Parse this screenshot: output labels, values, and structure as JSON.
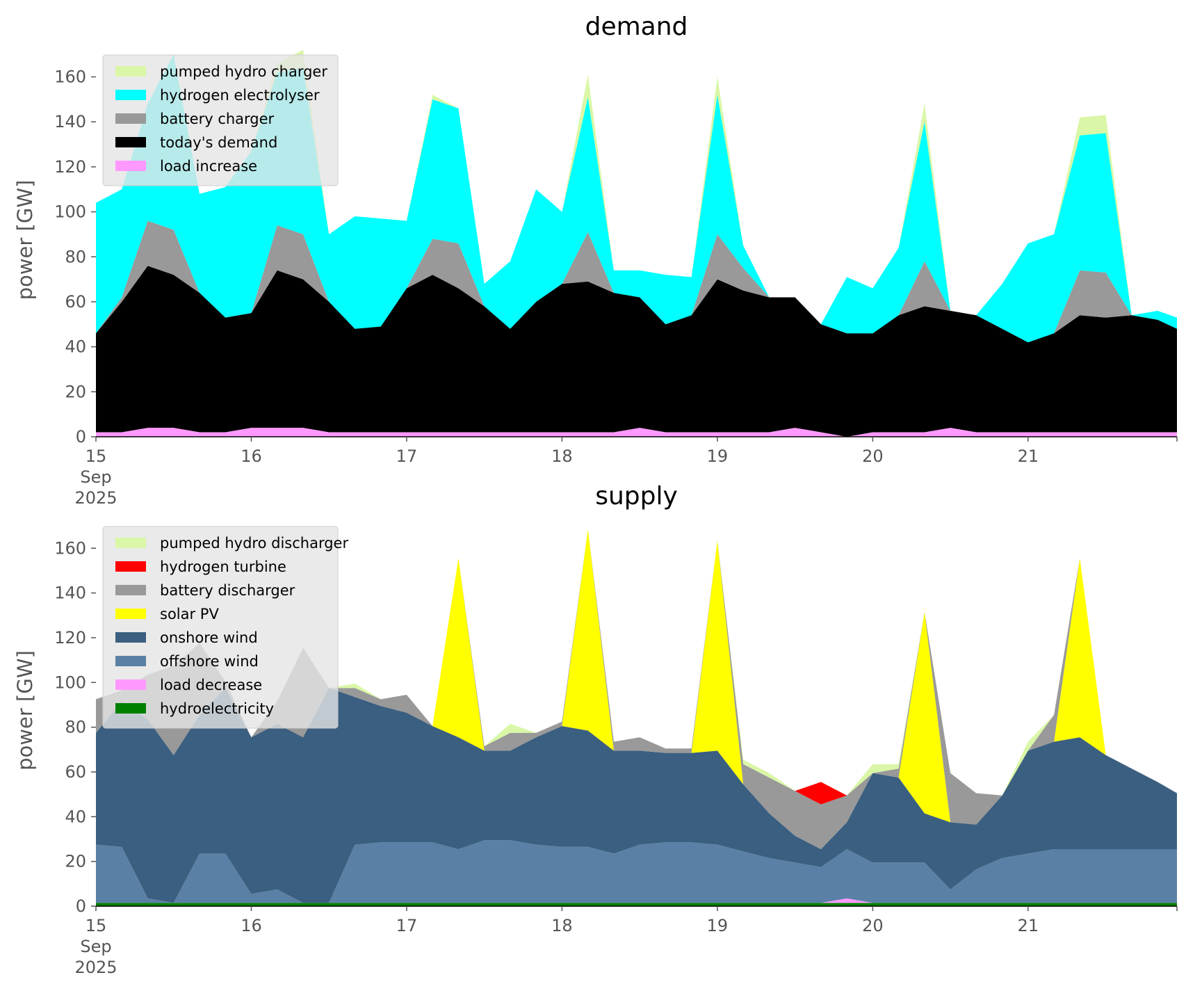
{
  "chart_data": [
    {
      "type": "area",
      "title": "demand",
      "ylabel": "power [GW]",
      "xlabel": "",
      "ylim": [
        0,
        175
      ],
      "yticks": [
        0,
        20,
        40,
        60,
        80,
        100,
        120,
        140,
        160
      ],
      "xlim": [
        0,
        167
      ],
      "xtick_labels": [
        {
          "x": 0,
          "lines": [
            "15",
            "Sep",
            "2025"
          ]
        },
        {
          "x": 24,
          "lines": [
            "16"
          ]
        },
        {
          "x": 48,
          "lines": [
            "17"
          ]
        },
        {
          "x": 72,
          "lines": [
            "18"
          ]
        },
        {
          "x": 96,
          "lines": [
            "19"
          ]
        },
        {
          "x": 120,
          "lines": [
            "20"
          ]
        },
        {
          "x": 144,
          "lines": [
            "21"
          ]
        }
      ],
      "x_unit": "hours from 2025-09-15 00:00",
      "stacked": true,
      "grid": false,
      "legend_position": "top-left",
      "x": [
        0,
        4,
        8,
        12,
        16,
        20,
        24,
        28,
        32,
        36,
        40,
        44,
        48,
        52,
        56,
        60,
        64,
        68,
        72,
        76,
        80,
        84,
        88,
        92,
        96,
        100,
        104,
        108,
        112,
        116,
        120,
        124,
        128,
        132,
        136,
        140,
        144,
        148,
        152,
        156,
        160,
        164,
        167
      ],
      "series": [
        {
          "name": "load increase",
          "color": "#ff99ff",
          "values": [
            2,
            2,
            4,
            4,
            2,
            2,
            4,
            4,
            4,
            2,
            2,
            2,
            2,
            2,
            2,
            2,
            2,
            2,
            2,
            2,
            2,
            4,
            2,
            2,
            2,
            2,
            2,
            4,
            2,
            0,
            2,
            2,
            2,
            4,
            2,
            2,
            2,
            2,
            2,
            2,
            2,
            2,
            2
          ]
        },
        {
          "name": "today's demand",
          "color": "#000000",
          "values": [
            44,
            58,
            72,
            68,
            62,
            51,
            51,
            70,
            66,
            58,
            46,
            47,
            64,
            70,
            64,
            56,
            46,
            58,
            66,
            67,
            62,
            58,
            48,
            52,
            68,
            63,
            60,
            58,
            48,
            46,
            44,
            52,
            56,
            52,
            52,
            46,
            40,
            44,
            52,
            51,
            52,
            50,
            46
          ]
        },
        {
          "name": "battery charger",
          "color": "#999999",
          "values": [
            0,
            2,
            20,
            20,
            0,
            0,
            0,
            20,
            20,
            0,
            0,
            0,
            0,
            16,
            20,
            0,
            0,
            0,
            0,
            22,
            0,
            0,
            0,
            0,
            20,
            10,
            0,
            0,
            0,
            0,
            0,
            0,
            20,
            0,
            0,
            0,
            0,
            0,
            20,
            20,
            0,
            0,
            0
          ]
        },
        {
          "name": "hydrogen electrolyser",
          "color": "#00ffff",
          "values": [
            58,
            48,
            52,
            78,
            44,
            58,
            72,
            68,
            74,
            30,
            50,
            48,
            30,
            62,
            60,
            10,
            30,
            50,
            32,
            60,
            10,
            12,
            22,
            17,
            62,
            10,
            0,
            0,
            0,
            25,
            20,
            30,
            62,
            0,
            0,
            20,
            44,
            44,
            60,
            62,
            0,
            4,
            5
          ]
        },
        {
          "name": "pumped hydro charger",
          "color": "#d9f7a6",
          "values": [
            0,
            0,
            0,
            0,
            0,
            0,
            0,
            4,
            8,
            0,
            0,
            0,
            0,
            2,
            0,
            0,
            0,
            0,
            0,
            10,
            0,
            0,
            0,
            0,
            8,
            0,
            0,
            0,
            0,
            0,
            0,
            0,
            8,
            0,
            0,
            0,
            0,
            0,
            8,
            8,
            0,
            0,
            0
          ]
        }
      ]
    },
    {
      "type": "area",
      "title": "supply",
      "ylabel": "power [GW]",
      "xlabel": "",
      "ylim": [
        0,
        175
      ],
      "yticks": [
        0,
        20,
        40,
        60,
        80,
        100,
        120,
        140,
        160
      ],
      "xlim": [
        0,
        167
      ],
      "xtick_labels": [
        {
          "x": 0,
          "lines": [
            "15",
            "Sep",
            "2025"
          ]
        },
        {
          "x": 24,
          "lines": [
            "16"
          ]
        },
        {
          "x": 48,
          "lines": [
            "17"
          ]
        },
        {
          "x": 72,
          "lines": [
            "18"
          ]
        },
        {
          "x": 96,
          "lines": [
            "19"
          ]
        },
        {
          "x": 120,
          "lines": [
            "20"
          ]
        },
        {
          "x": 144,
          "lines": [
            "21"
          ]
        }
      ],
      "x_unit": "hours from 2025-09-15 00:00",
      "stacked": true,
      "grid": false,
      "legend_position": "top-left",
      "x": [
        0,
        4,
        8,
        12,
        16,
        20,
        24,
        28,
        32,
        36,
        40,
        44,
        48,
        52,
        56,
        60,
        64,
        68,
        72,
        76,
        80,
        84,
        88,
        92,
        96,
        100,
        104,
        108,
        112,
        116,
        120,
        124,
        128,
        132,
        136,
        140,
        144,
        148,
        152,
        156,
        160,
        164,
        167
      ],
      "series": [
        {
          "name": "hydroelectricity",
          "color": "#008000",
          "values": [
            1.5,
            1.5,
            1.5,
            1.5,
            1.5,
            1.5,
            1.5,
            1.5,
            1.5,
            1.5,
            1.5,
            1.5,
            1.5,
            1.5,
            1.5,
            1.5,
            1.5,
            1.5,
            1.5,
            1.5,
            1.5,
            1.5,
            1.5,
            1.5,
            1.5,
            1.5,
            1.5,
            1.5,
            1.5,
            1.5,
            1.5,
            1.5,
            1.5,
            1.5,
            1.5,
            1.5,
            1.5,
            1.5,
            1.5,
            1.5,
            1.5,
            1.5,
            1.5
          ]
        },
        {
          "name": "load decrease",
          "color": "#ff99ff",
          "values": [
            0,
            0,
            0,
            0,
            0,
            0,
            0,
            0,
            0,
            0,
            0,
            0,
            0,
            0,
            0,
            0,
            0,
            0,
            0,
            0,
            0,
            0,
            0,
            0,
            0,
            0,
            0,
            0,
            0,
            2,
            0,
            0,
            0,
            0,
            0,
            0,
            0,
            0,
            0,
            0,
            0,
            0,
            0
          ]
        },
        {
          "name": "offshore wind",
          "color": "#5b80a5",
          "values": [
            26,
            25,
            2,
            0,
            22,
            22,
            4,
            6,
            0,
            0,
            26,
            27,
            27,
            27,
            24,
            28,
            28,
            26,
            25,
            25,
            22,
            26,
            27,
            27,
            26,
            23,
            20,
            18,
            16,
            22,
            18,
            18,
            18,
            6,
            15,
            20,
            22,
            24,
            24,
            24,
            24,
            24,
            24
          ]
        },
        {
          "name": "onshore wind",
          "color": "#3b5f80",
          "values": [
            50,
            65,
            80,
            66,
            62,
            74,
            70,
            74,
            74,
            96,
            66,
            61,
            58,
            52,
            50,
            40,
            40,
            48,
            54,
            52,
            46,
            42,
            40,
            40,
            42,
            30,
            20,
            12,
            8,
            12,
            40,
            38,
            22,
            30,
            20,
            28,
            46,
            48,
            50,
            42,
            36,
            30,
            25
          ]
        },
        {
          "name": "solar PV",
          "color": "#ffff00",
          "values": [
            0,
            0,
            0,
            0,
            0,
            0,
            0,
            0,
            0,
            0,
            0,
            0,
            0,
            0,
            80,
            0,
            0,
            0,
            0,
            90,
            0,
            0,
            0,
            0,
            94,
            0,
            0,
            0,
            0,
            0,
            0,
            0,
            90,
            0,
            0,
            0,
            0,
            0,
            80,
            0,
            0,
            0,
            0
          ]
        },
        {
          "name": "battery discharger",
          "color": "#999999",
          "values": [
            15,
            5,
            20,
            40,
            32,
            3,
            0,
            10,
            40,
            0,
            4,
            3,
            8,
            0,
            0,
            2,
            8,
            2,
            2,
            0,
            4,
            6,
            2,
            2,
            0,
            9,
            16,
            20,
            20,
            12,
            0,
            4,
            0,
            22,
            14,
            0,
            0,
            12,
            0,
            0,
            0,
            0,
            0
          ]
        },
        {
          "name": "hydrogen turbine",
          "color": "#ff0000",
          "values": [
            0,
            0,
            0,
            0,
            0,
            0,
            0,
            0,
            0,
            0,
            0,
            0,
            0,
            0,
            0,
            0,
            0,
            0,
            0,
            0,
            0,
            0,
            0,
            0,
            0,
            0,
            0,
            0,
            10,
            0,
            0,
            0,
            0,
            0,
            0,
            0,
            0,
            0,
            0,
            0,
            0,
            0,
            0
          ]
        },
        {
          "name": "pumped hydro discharger",
          "color": "#d9f7a6",
          "values": [
            0,
            0,
            0,
            0,
            0,
            0,
            0,
            0,
            0,
            0,
            2,
            0,
            0,
            0,
            0,
            0,
            4,
            0,
            0,
            0,
            0,
            0,
            0,
            0,
            0,
            2,
            2,
            0,
            0,
            0,
            4,
            2,
            0,
            0,
            0,
            0,
            4,
            0,
            0,
            0,
            0,
            0,
            0
          ]
        }
      ]
    }
  ]
}
